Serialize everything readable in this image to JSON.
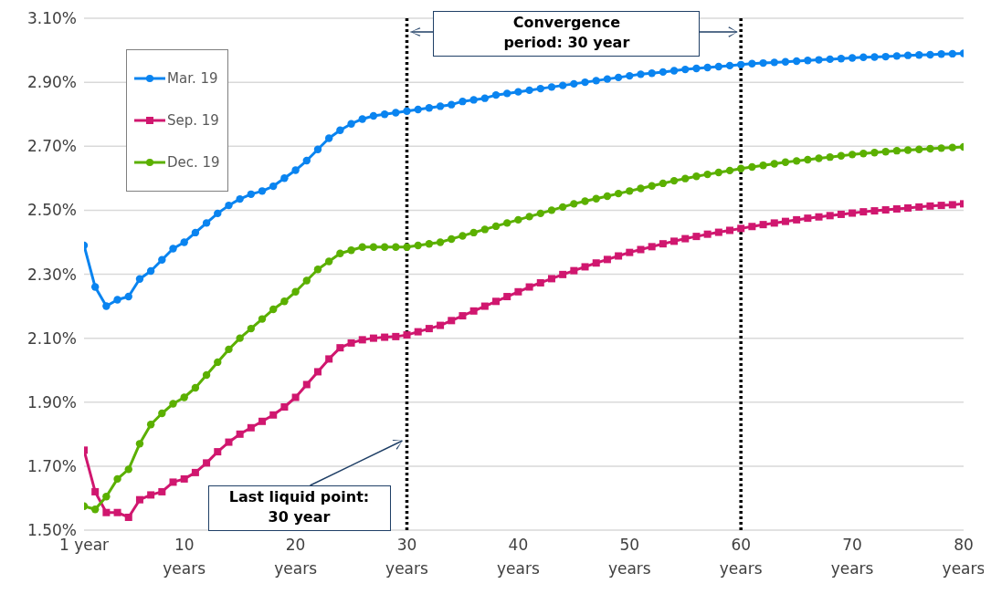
{
  "chart_data": {
    "type": "line",
    "x": [
      1,
      2,
      3,
      4,
      5,
      6,
      7,
      8,
      9,
      10,
      11,
      12,
      13,
      14,
      15,
      16,
      17,
      18,
      19,
      20,
      21,
      22,
      23,
      24,
      25,
      26,
      27,
      28,
      29,
      30,
      31,
      32,
      33,
      34,
      35,
      36,
      37,
      38,
      39,
      40,
      41,
      42,
      43,
      44,
      45,
      46,
      47,
      48,
      49,
      50,
      51,
      52,
      53,
      54,
      55,
      56,
      57,
      58,
      59,
      60,
      61,
      62,
      63,
      64,
      65,
      66,
      67,
      68,
      69,
      70,
      71,
      72,
      73,
      74,
      75,
      76,
      77,
      78,
      79,
      80
    ],
    "series": [
      {
        "name": "Mar. 19",
        "color": "#0a84f0",
        "marker": "circle",
        "values": [
          2.39,
          2.26,
          2.2,
          2.22,
          2.23,
          2.285,
          2.31,
          2.345,
          2.38,
          2.4,
          2.43,
          2.46,
          2.49,
          2.515,
          2.535,
          2.55,
          2.56,
          2.575,
          2.6,
          2.625,
          2.655,
          2.69,
          2.725,
          2.75,
          2.77,
          2.785,
          2.795,
          2.8,
          2.805,
          2.81,
          2.815,
          2.82,
          2.825,
          2.83,
          2.84,
          2.845,
          2.85,
          2.86,
          2.865,
          2.87,
          2.875,
          2.88,
          2.885,
          2.89,
          2.895,
          2.9,
          2.905,
          2.91,
          2.915,
          2.92,
          2.925,
          2.928,
          2.932,
          2.936,
          2.94,
          2.943,
          2.946,
          2.949,
          2.952,
          2.955,
          2.958,
          2.96,
          2.962,
          2.964,
          2.966,
          2.968,
          2.97,
          2.972,
          2.974,
          2.976,
          2.978,
          2.979,
          2.98,
          2.982,
          2.984,
          2.985,
          2.986,
          2.988,
          2.989,
          2.99
        ]
      },
      {
        "name": "Sep. 19",
        "color": "#d0176f",
        "marker": "square",
        "values": [
          1.75,
          1.62,
          1.555,
          1.555,
          1.54,
          1.595,
          1.61,
          1.62,
          1.65,
          1.66,
          1.68,
          1.71,
          1.745,
          1.775,
          1.8,
          1.82,
          1.84,
          1.86,
          1.885,
          1.915,
          1.955,
          1.995,
          2.035,
          2.07,
          2.085,
          2.095,
          2.1,
          2.103,
          2.105,
          2.11,
          2.12,
          2.13,
          2.14,
          2.155,
          2.17,
          2.185,
          2.2,
          2.215,
          2.23,
          2.245,
          2.26,
          2.273,
          2.286,
          2.299,
          2.311,
          2.323,
          2.335,
          2.346,
          2.357,
          2.368,
          2.377,
          2.386,
          2.395,
          2.403,
          2.411,
          2.418,
          2.425,
          2.431,
          2.437,
          2.443,
          2.449,
          2.455,
          2.46,
          2.465,
          2.47,
          2.475,
          2.479,
          2.483,
          2.487,
          2.491,
          2.495,
          2.498,
          2.501,
          2.504,
          2.507,
          2.51,
          2.513,
          2.515,
          2.517,
          2.52
        ]
      },
      {
        "name": "Dec. 19",
        "color": "#5bb000",
        "marker": "circle",
        "values": [
          1.575,
          1.565,
          1.605,
          1.66,
          1.69,
          1.77,
          1.83,
          1.865,
          1.895,
          1.915,
          1.945,
          1.985,
          2.025,
          2.065,
          2.1,
          2.13,
          2.16,
          2.19,
          2.215,
          2.245,
          2.28,
          2.315,
          2.34,
          2.365,
          2.375,
          2.385,
          2.385,
          2.385,
          2.385,
          2.385,
          2.39,
          2.395,
          2.4,
          2.41,
          2.42,
          2.43,
          2.44,
          2.45,
          2.46,
          2.47,
          2.48,
          2.49,
          2.5,
          2.51,
          2.52,
          2.528,
          2.536,
          2.544,
          2.552,
          2.56,
          2.568,
          2.576,
          2.584,
          2.592,
          2.599,
          2.606,
          2.612,
          2.618,
          2.624,
          2.63,
          2.635,
          2.64,
          2.645,
          2.65,
          2.654,
          2.658,
          2.662,
          2.666,
          2.67,
          2.674,
          2.677,
          2.68,
          2.683,
          2.686,
          2.688,
          2.69,
          2.692,
          2.694,
          2.696,
          2.698
        ]
      }
    ],
    "xlim": [
      1,
      80
    ],
    "xticks": [
      {
        "value": 1,
        "label": "1 year"
      },
      {
        "value": 10,
        "label": "10\nyears"
      },
      {
        "value": 20,
        "label": "20\nyears"
      },
      {
        "value": 30,
        "label": "30\nyears"
      },
      {
        "value": 40,
        "label": "40\nyears"
      },
      {
        "value": 50,
        "label": "50\nyears"
      },
      {
        "value": 60,
        "label": "60\nyears"
      },
      {
        "value": 70,
        "label": "70\nyears"
      },
      {
        "value": 80,
        "label": "80\nyears"
      }
    ],
    "ylim": [
      1.5,
      3.1
    ],
    "yticks": [
      {
        "value": 1.5,
        "label": "1.50%"
      },
      {
        "value": 1.7,
        "label": "1.70%"
      },
      {
        "value": 1.9,
        "label": "1.90%"
      },
      {
        "value": 2.1,
        "label": "2.10%"
      },
      {
        "value": 2.3,
        "label": "2.30%"
      },
      {
        "value": 2.5,
        "label": "2.50%"
      },
      {
        "value": 2.7,
        "label": "2.70%"
      },
      {
        "value": 2.9,
        "label": "2.90%"
      },
      {
        "value": 3.1,
        "label": "3.10%"
      }
    ],
    "grid": "y",
    "legend": "top left",
    "ref_lines": [
      {
        "axis": "x",
        "value": 30,
        "color": "#000000",
        "line_style": "dotted"
      },
      {
        "axis": "x",
        "value": 60,
        "color": "#000000",
        "line_style": "dotted"
      }
    ],
    "annotations": [
      {
        "text": "Convergence\nperiod: 30 year"
      },
      "Last liquid point:\n30 year"
    ]
  }
}
